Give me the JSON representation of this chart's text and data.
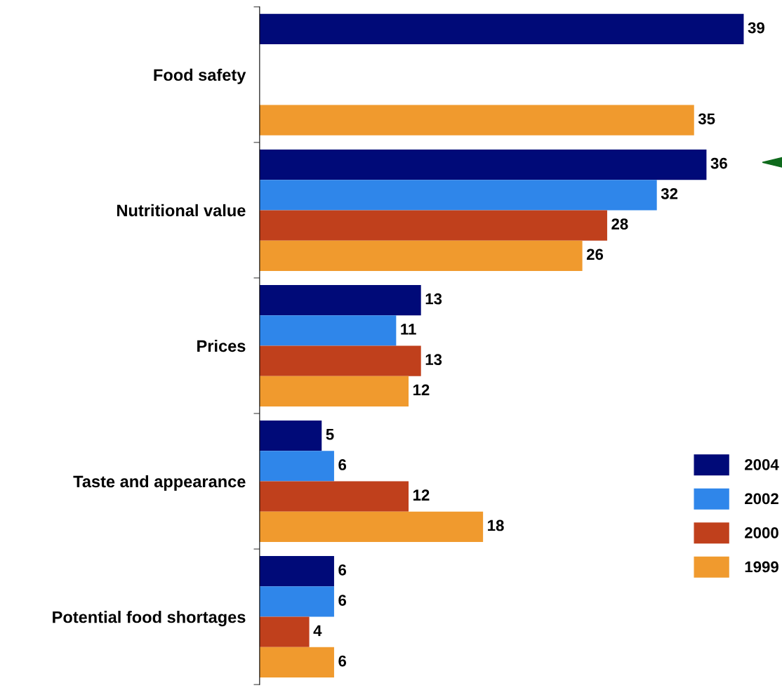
{
  "chart_data": {
    "type": "bar",
    "orientation": "horizontal",
    "categories": [
      "Food safety",
      "Nutritional value",
      "Prices",
      "Taste and appearance",
      "Potential food shortages"
    ],
    "series": [
      {
        "name": "2004",
        "color": "#000a78",
        "values": [
          39,
          36,
          13,
          5,
          6
        ]
      },
      {
        "name": "2002",
        "color": "#2f86ea",
        "values": [
          null,
          32,
          11,
          6,
          6
        ]
      },
      {
        "name": "2000",
        "color": "#c0401c",
        "values": [
          null,
          28,
          13,
          12,
          4
        ]
      },
      {
        "name": "1999",
        "color": "#f09a2e",
        "values": [
          35,
          26,
          12,
          18,
          6
        ]
      }
    ],
    "data_labels": true,
    "legend": "right",
    "tick_labels": "y",
    "grid": false
  }
}
